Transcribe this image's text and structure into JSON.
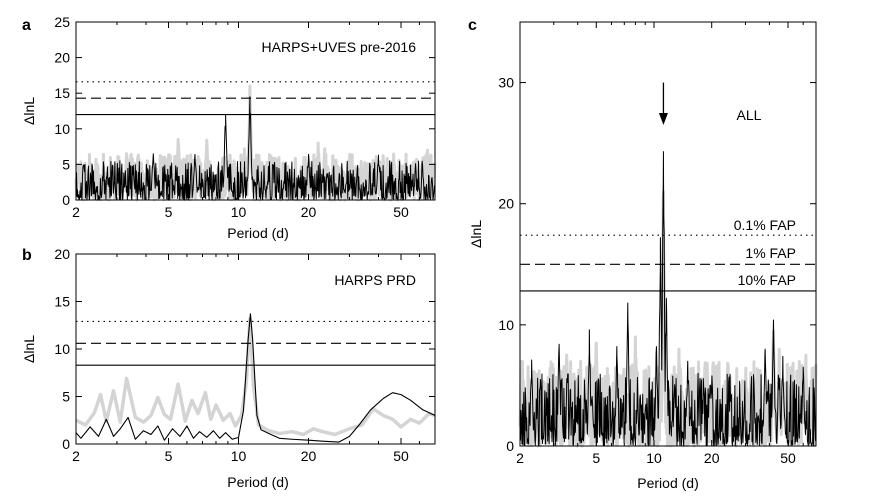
{
  "chart_data": [
    {
      "panel": "a",
      "type": "line",
      "annotation": "HARPS+UVES pre-2016",
      "xlabel": "Period (d)",
      "ylabel": "ΔlnL",
      "x_scale": "log",
      "xlim": [
        2,
        70
      ],
      "ylim": [
        0,
        25
      ],
      "x_ticks": [
        2,
        5,
        10,
        20,
        50
      ],
      "y_ticks": [
        0,
        5,
        10,
        15,
        20,
        25
      ],
      "grid": false,
      "thresholds": [
        {
          "style": "dotted",
          "y": 16.6
        },
        {
          "style": "dashed",
          "y": 14.3
        },
        {
          "style": "solid",
          "y": 12.0
        }
      ],
      "series": [
        {
          "color": "#d4d4d4",
          "noise_max": 6.5,
          "peaks": [
            [
              3.3,
              6.5
            ],
            [
              5.5,
              8.5
            ],
            [
              7.3,
              8.4
            ],
            [
              10.6,
              7.2
            ],
            [
              11.2,
              16.0
            ],
            [
              22.0,
              8.0
            ],
            [
              23.5,
              7.2
            ],
            [
              65.0,
              7.0
            ]
          ]
        },
        {
          "color": "#000000",
          "noise_max": 5.5,
          "peaks": [
            [
              4.3,
              6.5
            ],
            [
              6.5,
              6.4
            ],
            [
              8.8,
              12.0
            ],
            [
              11.2,
              14.5
            ],
            [
              20.0,
              6.4
            ],
            [
              40.0,
              6.3
            ]
          ]
        }
      ]
    },
    {
      "panel": "b",
      "type": "line",
      "annotation": "HARPS PRD",
      "xlabel": "Period (d)",
      "ylabel": "ΔlnL",
      "x_scale": "log",
      "xlim": [
        2,
        70
      ],
      "ylim": [
        0,
        20
      ],
      "x_ticks": [
        2,
        5,
        10,
        20,
        50
      ],
      "y_ticks": [
        0,
        5,
        10,
        15,
        20
      ],
      "grid": false,
      "thresholds": [
        {
          "style": "dotted",
          "y": 12.9
        },
        {
          "style": "dashed",
          "y": 10.6
        },
        {
          "style": "solid",
          "y": 8.3
        }
      ],
      "series": [
        {
          "color": "#d4d4d4",
          "points": [
            [
              2.0,
              2.5
            ],
            [
              2.2,
              2.0
            ],
            [
              2.4,
              3.3
            ],
            [
              2.55,
              5.2
            ],
            [
              2.7,
              2.4
            ],
            [
              2.9,
              5.6
            ],
            [
              3.1,
              2.3
            ],
            [
              3.3,
              6.9
            ],
            [
              3.6,
              2.8
            ],
            [
              3.9,
              2.3
            ],
            [
              4.2,
              3.0
            ],
            [
              4.5,
              4.9
            ],
            [
              4.8,
              3.1
            ],
            [
              5.1,
              2.6
            ],
            [
              5.5,
              6.3
            ],
            [
              5.9,
              2.4
            ],
            [
              6.3,
              4.6
            ],
            [
              6.7,
              3.2
            ],
            [
              7.2,
              5.4
            ],
            [
              7.6,
              2.6
            ],
            [
              8.0,
              4.1
            ],
            [
              8.6,
              2.5
            ],
            [
              9.2,
              3.2
            ],
            [
              9.7,
              1.9
            ],
            [
              10.3,
              3.0
            ],
            [
              10.8,
              6.5
            ],
            [
              11.2,
              13.2
            ],
            [
              11.6,
              6.0
            ],
            [
              12.2,
              2.0
            ],
            [
              13.5,
              1.4
            ],
            [
              15.0,
              1.1
            ],
            [
              17.0,
              1.3
            ],
            [
              19.0,
              1.0
            ],
            [
              21.0,
              1.6
            ],
            [
              23.0,
              1.3
            ],
            [
              26.0,
              1.0
            ],
            [
              30.0,
              1.6
            ],
            [
              34.0,
              2.0
            ],
            [
              38.0,
              3.7
            ],
            [
              42.0,
              3.0
            ],
            [
              46.0,
              2.6
            ],
            [
              50.0,
              1.8
            ],
            [
              55.0,
              2.6
            ],
            [
              60.0,
              2.2
            ],
            [
              66.0,
              3.2
            ],
            [
              70.0,
              3.0
            ]
          ]
        },
        {
          "color": "#000000",
          "points": [
            [
              2.0,
              1.2
            ],
            [
              2.1,
              0.6
            ],
            [
              2.3,
              1.8
            ],
            [
              2.5,
              0.8
            ],
            [
              2.7,
              2.6
            ],
            [
              2.9,
              0.8
            ],
            [
              3.1,
              1.6
            ],
            [
              3.35,
              2.8
            ],
            [
              3.6,
              0.5
            ],
            [
              3.9,
              1.4
            ],
            [
              4.2,
              1.0
            ],
            [
              4.5,
              1.9
            ],
            [
              4.8,
              0.4
            ],
            [
              5.2,
              1.6
            ],
            [
              5.6,
              0.8
            ],
            [
              6.0,
              1.9
            ],
            [
              6.4,
              0.6
            ],
            [
              6.8,
              1.3
            ],
            [
              7.3,
              0.7
            ],
            [
              7.8,
              1.4
            ],
            [
              8.3,
              0.6
            ],
            [
              8.8,
              1.2
            ],
            [
              9.4,
              0.5
            ],
            [
              10.0,
              0.7
            ],
            [
              10.5,
              3.5
            ],
            [
              11.0,
              11.0
            ],
            [
              11.25,
              13.7
            ],
            [
              11.5,
              11.0
            ],
            [
              12.0,
              3.0
            ],
            [
              12.5,
              1.5
            ],
            [
              13.5,
              1.1
            ],
            [
              15.0,
              0.6
            ],
            [
              17.0,
              0.5
            ],
            [
              20.0,
              0.4
            ],
            [
              23.0,
              0.3
            ],
            [
              27.0,
              0.2
            ],
            [
              30.0,
              0.8
            ],
            [
              33.0,
              2.0
            ],
            [
              37.0,
              3.6
            ],
            [
              42.0,
              4.8
            ],
            [
              46.0,
              5.4
            ],
            [
              50.0,
              5.2
            ],
            [
              55.0,
              4.6
            ],
            [
              62.0,
              3.6
            ],
            [
              70.0,
              3.0
            ]
          ]
        }
      ]
    },
    {
      "panel": "c",
      "type": "line",
      "annotation": "ALL",
      "xlabel": "Period (d)",
      "ylabel": "ΔlnL",
      "x_scale": "log",
      "xlim": [
        2,
        70
      ],
      "ylim": [
        0,
        35
      ],
      "x_ticks": [
        2,
        5,
        10,
        20,
        50
      ],
      "y_ticks": [
        0,
        10,
        20,
        30
      ],
      "grid": false,
      "thresholds": [
        {
          "style": "dotted",
          "y": 17.4,
          "label": "0.1% FAP"
        },
        {
          "style": "dashed",
          "y": 15.0,
          "label": "1% FAP"
        },
        {
          "style": "solid",
          "y": 12.8,
          "label": "10% FAP"
        }
      ],
      "arrow": {
        "x": 11.2,
        "y_from": 30.0,
        "y_to": 26.5
      },
      "series": [
        {
          "color": "#d4d4d4",
          "noise_max": 7.0,
          "peaks": [
            [
              3.5,
              7.5
            ],
            [
              5.0,
              8.5
            ],
            [
              8.0,
              9.0
            ],
            [
              11.2,
              21.0
            ],
            [
              13.5,
              8.0
            ],
            [
              42.0,
              9.5
            ],
            [
              45.0,
              8.0
            ],
            [
              62.0,
              7.5
            ]
          ]
        },
        {
          "color": "#000000",
          "noise_max": 6.0,
          "peaks": [
            [
              2.3,
              7.1
            ],
            [
              3.2,
              8.4
            ],
            [
              4.6,
              9.6
            ],
            [
              6.4,
              8.2
            ],
            [
              7.3,
              11.8
            ],
            [
              10.3,
              8.2
            ],
            [
              10.8,
              17.2
            ],
            [
              11.2,
              24.3
            ],
            [
              11.6,
              12.2
            ],
            [
              15.0,
              7.0
            ],
            [
              38.0,
              8.0
            ],
            [
              42.0,
              10.4
            ],
            [
              47.0,
              7.4
            ],
            [
              60.0,
              6.5
            ]
          ]
        }
      ]
    }
  ],
  "panels": {
    "a": {
      "letter": "a"
    },
    "b": {
      "letter": "b"
    },
    "c": {
      "letter": "c"
    }
  }
}
